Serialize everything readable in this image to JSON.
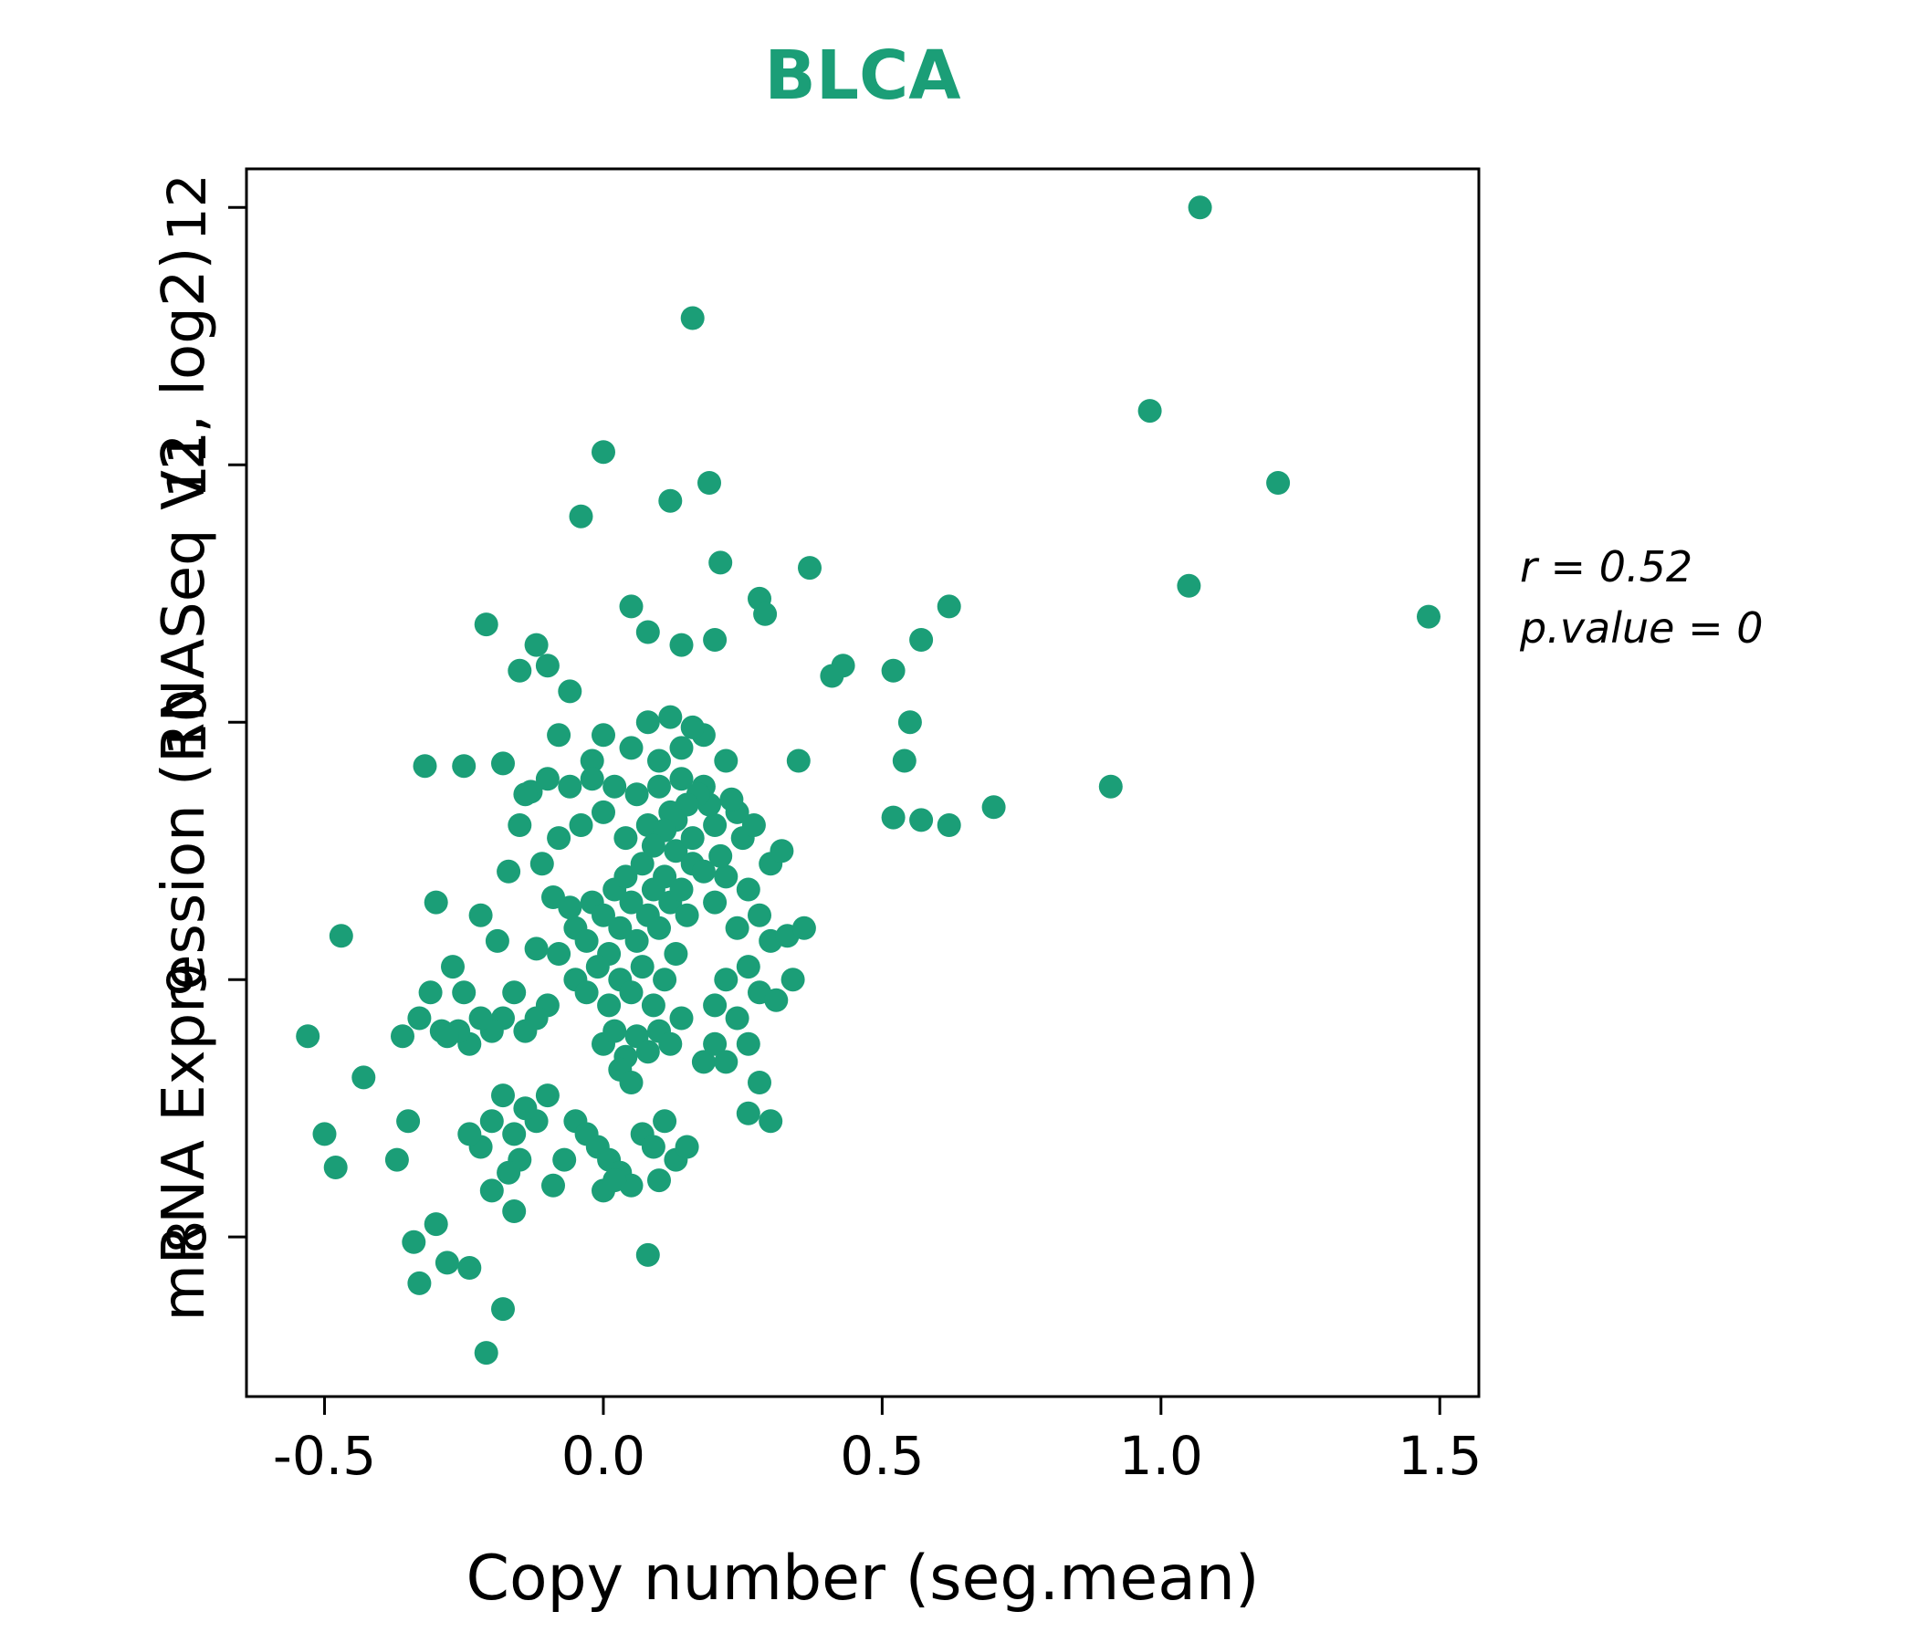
{
  "title": "BLCA",
  "annotation": {
    "line1": "r = 0.52",
    "line2": "p.value = 0"
  },
  "chart_data": {
    "type": "scatter",
    "title": "BLCA",
    "xlabel": "Copy number (seg.mean)",
    "ylabel": "mRNA Expression (RNASeq V2, log2)",
    "xlim": [
      -0.64,
      1.57
    ],
    "ylim": [
      7.38,
      12.15
    ],
    "xticks": [
      -0.5,
      0.0,
      0.5,
      1.0,
      1.5
    ],
    "xtick_labels": [
      "-0.5",
      "0.0",
      "0.5",
      "1.0",
      "1.5"
    ],
    "yticks": [
      8,
      9,
      10,
      11,
      12
    ],
    "ytick_labels": [
      "8",
      "9",
      "10",
      "11",
      "12"
    ],
    "grid": false,
    "legend": "none",
    "point_color": "#1b9e77",
    "r": 0.52,
    "p_value": 0,
    "points": [
      [
        1.07,
        12.0
      ],
      [
        0.16,
        11.57
      ],
      [
        0.98,
        11.21
      ],
      [
        1.21,
        10.93
      ],
      [
        1.48,
        10.41
      ],
      [
        1.05,
        10.53
      ],
      [
        0.0,
        11.05
      ],
      [
        0.12,
        10.86
      ],
      [
        0.19,
        10.93
      ],
      [
        -0.04,
        10.8
      ],
      [
        0.21,
        10.62
      ],
      [
        0.37,
        10.6
      ],
      [
        0.62,
        10.45
      ],
      [
        0.57,
        10.32
      ],
      [
        0.05,
        10.45
      ],
      [
        0.08,
        10.35
      ],
      [
        -0.21,
        10.38
      ],
      [
        -0.12,
        10.3
      ],
      [
        0.28,
        10.48
      ],
      [
        0.29,
        10.42
      ],
      [
        0.52,
        10.2
      ],
      [
        0.55,
        10.0
      ],
      [
        0.43,
        10.22
      ],
      [
        0.41,
        10.18
      ],
      [
        0.14,
        10.3
      ],
      [
        0.2,
        10.32
      ],
      [
        0.91,
        9.75
      ],
      [
        0.7,
        9.67
      ],
      [
        0.62,
        9.6
      ],
      [
        0.54,
        9.85
      ],
      [
        0.52,
        9.63
      ],
      [
        0.57,
        9.62
      ],
      [
        -0.32,
        9.83
      ],
      [
        -0.25,
        9.83
      ],
      [
        -0.18,
        9.84
      ],
      [
        -0.15,
        10.2
      ],
      [
        -0.1,
        10.22
      ],
      [
        -0.06,
        10.12
      ],
      [
        -0.08,
        9.95
      ],
      [
        -0.13,
        9.73
      ],
      [
        -0.15,
        9.6
      ],
      [
        -0.17,
        9.42
      ],
      [
        -0.11,
        9.45
      ],
      [
        -0.21,
        7.55
      ],
      [
        -0.18,
        7.72
      ],
      [
        -0.33,
        7.82
      ],
      [
        -0.24,
        7.88
      ],
      [
        0.08,
        7.93
      ],
      [
        -0.28,
        7.9
      ],
      [
        -0.34,
        7.98
      ],
      [
        -0.3,
        8.05
      ],
      [
        -0.16,
        8.1
      ],
      [
        -0.2,
        8.18
      ],
      [
        -0.53,
        8.78
      ],
      [
        -0.47,
        9.17
      ],
      [
        -0.48,
        8.27
      ],
      [
        -0.5,
        8.4
      ],
      [
        -0.43,
        8.62
      ],
      [
        -0.36,
        8.78
      ],
      [
        -0.37,
        8.3
      ],
      [
        -0.33,
        8.85
      ],
      [
        -0.29,
        8.8
      ],
      [
        -0.35,
        8.45
      ],
      [
        -0.05,
        9.2
      ],
      [
        -0.03,
        9.15
      ],
      [
        -0.02,
        9.3
      ],
      [
        0.0,
        9.25
      ],
      [
        0.01,
        9.1
      ],
      [
        0.02,
        9.35
      ],
      [
        0.03,
        9.2
      ],
      [
        0.04,
        9.4
      ],
      [
        0.05,
        9.3
      ],
      [
        0.06,
        9.15
      ],
      [
        0.07,
        9.45
      ],
      [
        0.08,
        9.25
      ],
      [
        0.09,
        9.35
      ],
      [
        0.1,
        9.2
      ],
      [
        0.11,
        9.4
      ],
      [
        0.12,
        9.3
      ],
      [
        0.13,
        9.5
      ],
      [
        0.14,
        9.35
      ],
      [
        0.15,
        9.25
      ],
      [
        0.16,
        9.45
      ],
      [
        -0.05,
        9.0
      ],
      [
        -0.03,
        8.95
      ],
      [
        -0.01,
        9.05
      ],
      [
        0.01,
        8.9
      ],
      [
        0.03,
        9.0
      ],
      [
        0.05,
        8.95
      ],
      [
        0.07,
        9.05
      ],
      [
        0.09,
        8.9
      ],
      [
        0.11,
        9.0
      ],
      [
        0.13,
        9.1
      ],
      [
        0.0,
        8.75
      ],
      [
        0.02,
        8.8
      ],
      [
        0.04,
        8.7
      ],
      [
        0.06,
        8.78
      ],
      [
        0.08,
        8.72
      ],
      [
        0.1,
        8.8
      ],
      [
        0.12,
        8.75
      ],
      [
        0.14,
        8.85
      ],
      [
        0.03,
        8.65
      ],
      [
        0.05,
        8.6
      ],
      [
        -0.08,
        9.55
      ],
      [
        -0.04,
        9.6
      ],
      [
        0.0,
        9.65
      ],
      [
        0.04,
        9.55
      ],
      [
        0.08,
        9.6
      ],
      [
        0.12,
        9.65
      ],
      [
        0.16,
        9.55
      ],
      [
        0.2,
        9.6
      ],
      [
        0.24,
        9.65
      ],
      [
        0.18,
        9.75
      ],
      [
        0.1,
        9.85
      ],
      [
        0.14,
        9.9
      ],
      [
        0.18,
        9.95
      ],
      [
        0.22,
        9.85
      ],
      [
        0.05,
        9.9
      ],
      [
        0.0,
        9.95
      ],
      [
        -0.02,
        9.85
      ],
      [
        0.08,
        10.0
      ],
      [
        0.12,
        10.02
      ],
      [
        0.16,
        9.98
      ],
      [
        0.2,
        9.3
      ],
      [
        0.22,
        9.4
      ],
      [
        0.24,
        9.2
      ],
      [
        0.26,
        9.35
      ],
      [
        0.28,
        9.25
      ],
      [
        0.3,
        9.45
      ],
      [
        0.25,
        9.55
      ],
      [
        0.27,
        9.6
      ],
      [
        0.32,
        9.5
      ],
      [
        0.35,
        9.85
      ],
      [
        0.2,
        8.9
      ],
      [
        0.22,
        9.0
      ],
      [
        0.24,
        8.85
      ],
      [
        0.26,
        9.05
      ],
      [
        0.28,
        8.95
      ],
      [
        0.3,
        9.15
      ],
      [
        0.33,
        9.17
      ],
      [
        0.26,
        8.75
      ],
      [
        0.28,
        8.6
      ],
      [
        0.3,
        8.45
      ],
      [
        -0.1,
        8.9
      ],
      [
        -0.12,
        8.85
      ],
      [
        -0.14,
        8.8
      ],
      [
        -0.16,
        8.95
      ],
      [
        -0.18,
        8.85
      ],
      [
        -0.2,
        8.8
      ],
      [
        -0.22,
        8.85
      ],
      [
        -0.24,
        8.75
      ],
      [
        -0.26,
        8.8
      ],
      [
        -0.28,
        8.78
      ],
      [
        -0.1,
        8.55
      ],
      [
        -0.12,
        8.45
      ],
      [
        -0.14,
        8.5
      ],
      [
        -0.16,
        8.4
      ],
      [
        -0.18,
        8.55
      ],
      [
        -0.2,
        8.45
      ],
      [
        -0.22,
        8.35
      ],
      [
        -0.24,
        8.4
      ],
      [
        -0.15,
        8.3
      ],
      [
        -0.17,
        8.25
      ],
      [
        -0.05,
        8.45
      ],
      [
        -0.03,
        8.4
      ],
      [
        -0.01,
        8.35
      ],
      [
        0.01,
        8.3
      ],
      [
        0.03,
        8.25
      ],
      [
        0.05,
        8.2
      ],
      [
        -0.07,
        8.3
      ],
      [
        -0.09,
        8.2
      ],
      [
        0.0,
        8.18
      ],
      [
        0.02,
        8.22
      ],
      [
        0.07,
        8.4
      ],
      [
        0.09,
        8.35
      ],
      [
        0.11,
        8.45
      ],
      [
        0.13,
        8.3
      ],
      [
        0.15,
        8.35
      ],
      [
        0.1,
        8.22
      ],
      [
        0.18,
        8.68
      ],
      [
        0.2,
        8.75
      ],
      [
        0.22,
        8.68
      ],
      [
        0.26,
        8.48
      ],
      [
        -0.06,
        9.75
      ],
      [
        -0.1,
        9.78
      ],
      [
        -0.14,
        9.72
      ],
      [
        -0.02,
        9.78
      ],
      [
        0.02,
        9.75
      ],
      [
        0.06,
        9.72
      ],
      [
        0.1,
        9.75
      ],
      [
        0.14,
        9.78
      ],
      [
        0.18,
        9.42
      ],
      [
        0.21,
        9.48
      ],
      [
        -0.3,
        9.3
      ],
      [
        -0.27,
        9.05
      ],
      [
        -0.25,
        8.95
      ],
      [
        -0.31,
        8.95
      ],
      [
        -0.22,
        9.25
      ],
      [
        -0.19,
        9.15
      ],
      [
        -0.12,
        9.12
      ],
      [
        -0.08,
        9.1
      ],
      [
        -0.06,
        9.28
      ],
      [
        -0.09,
        9.32
      ],
      [
        0.34,
        9.0
      ],
      [
        0.36,
        9.2
      ],
      [
        0.31,
        8.92
      ],
      [
        0.23,
        9.7
      ],
      [
        0.19,
        9.68
      ],
      [
        0.17,
        9.72
      ],
      [
        0.15,
        9.68
      ],
      [
        0.13,
        9.62
      ],
      [
        0.11,
        9.58
      ],
      [
        0.09,
        9.52
      ]
    ]
  }
}
